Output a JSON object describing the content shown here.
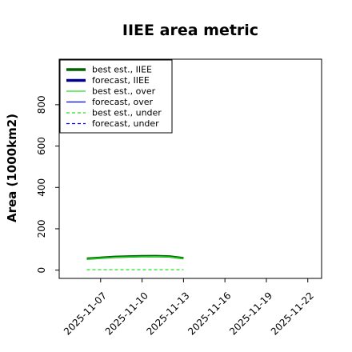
{
  "chart_data": {
    "type": "line",
    "title": "IIEE area metric",
    "xlabel": "",
    "ylabel": "Area (1000km2)",
    "ylim": [
      -40,
      1020
    ],
    "yticks": [
      0,
      200,
      400,
      600,
      800
    ],
    "xlim": [
      "2025-11-04",
      "2025-11-23"
    ],
    "xticks": [
      "2025-11-07",
      "2025-11-10",
      "2025-11-13",
      "2025-11-16",
      "2025-11-19",
      "2025-11-22"
    ],
    "xtick_colors": [
      "#000000",
      "#000000",
      "#228B22",
      "#000000",
      "#000000",
      "#000000"
    ],
    "grid": false,
    "legend_position": "top-left",
    "series": [
      {
        "name": "best est., IIEE",
        "color": "#006400",
        "style": "solid",
        "width": "thick",
        "x": [
          "2025-11-06",
          "2025-11-07",
          "2025-11-08",
          "2025-11-09",
          "2025-11-10",
          "2025-11-11",
          "2025-11-12",
          "2025-11-13"
        ],
        "y": [
          55,
          60,
          64,
          66,
          67,
          68,
          66,
          58
        ]
      },
      {
        "name": "forecast, IIEE",
        "color": "#00008B",
        "style": "solid",
        "width": "thick",
        "x": [],
        "y": []
      },
      {
        "name": "best est., over",
        "color": "#22DD22",
        "style": "solid",
        "width": "thin",
        "x": [
          "2025-11-06",
          "2025-11-07",
          "2025-11-08",
          "2025-11-09",
          "2025-11-10",
          "2025-11-11",
          "2025-11-12",
          "2025-11-13"
        ],
        "y": [
          53,
          58,
          62,
          64,
          65,
          66,
          64,
          56
        ]
      },
      {
        "name": "forecast, over",
        "color": "#0000FF",
        "style": "solid",
        "width": "thin",
        "x": [],
        "y": []
      },
      {
        "name": "best est., under",
        "color": "#22DD22",
        "style": "dashed",
        "width": "thin",
        "x": [
          "2025-11-06",
          "2025-11-07",
          "2025-11-08",
          "2025-11-09",
          "2025-11-10",
          "2025-11-11",
          "2025-11-12",
          "2025-11-13"
        ],
        "y": [
          2,
          2,
          2,
          2,
          2,
          2,
          2,
          2
        ]
      },
      {
        "name": "forecast, under",
        "color": "#0000FF",
        "style": "dashed",
        "width": "thin",
        "x": [],
        "y": []
      }
    ]
  }
}
